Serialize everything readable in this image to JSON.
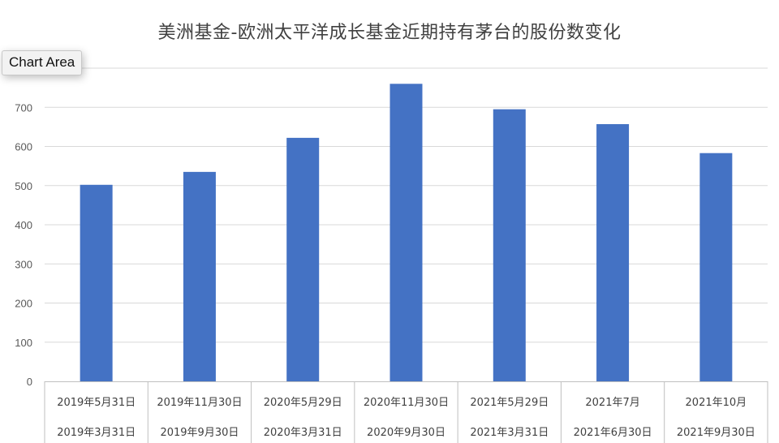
{
  "chart_data": {
    "type": "bar",
    "title": "美洲基金-欧洲太平洋成长基金近期持有茅台的股份数变化",
    "xlabel": "",
    "ylabel": "",
    "ylim": [
      0,
      800
    ],
    "yticks": [
      0,
      100,
      200,
      300,
      400,
      500,
      600,
      700
    ],
    "grid": true,
    "legend": "none",
    "bar_color": "#4472c4",
    "categories": [
      {
        "top": "2019年5月31日",
        "bottom": "2019年3月31日"
      },
      {
        "top": "2019年11月30日",
        "bottom": "2019年9月30日"
      },
      {
        "top": "2020年5月29日",
        "bottom": "2020年3月31日"
      },
      {
        "top": "2020年11月30日",
        "bottom": "2020年9月30日"
      },
      {
        "top": "2021年5月29日",
        "bottom": "2021年3月31日"
      },
      {
        "top": "2021年7月",
        "bottom": "2021年6月30日"
      },
      {
        "top": "2021年10月",
        "bottom": "2021年9月30日"
      }
    ],
    "values": [
      502,
      535,
      622,
      760,
      695,
      657,
      583
    ]
  },
  "tooltip": {
    "label": "Chart Area"
  }
}
